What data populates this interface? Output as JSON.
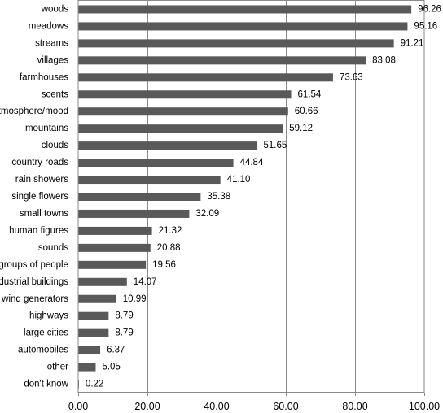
{
  "chart_data": {
    "type": "bar",
    "orientation": "horizontal",
    "categories": [
      "woods",
      "meadows",
      "streams",
      "villages",
      "farmhouses",
      "scents",
      "atmosphere/mood",
      "mountains",
      "clouds",
      "country roads",
      "rain showers",
      "single flowers",
      "small towns",
      "human figures",
      "sounds",
      "groups of people",
      "industrial buildings",
      "wind generators",
      "highways",
      "large cities",
      "automobiles",
      "other",
      "don't know"
    ],
    "values": [
      96.26,
      95.16,
      91.21,
      83.08,
      73.63,
      61.54,
      60.66,
      59.12,
      51.65,
      44.84,
      41.1,
      35.38,
      32.09,
      21.32,
      20.88,
      19.56,
      14.07,
      10.99,
      8.79,
      8.79,
      6.37,
      5.05,
      0.22
    ],
    "value_labels": [
      "96.26",
      "95.16",
      "91.21",
      "83.08",
      "73.63",
      "61.54",
      "60.66",
      "59.12",
      "51.65",
      "44.84",
      "41.10",
      "35.38",
      "32.09",
      "21.32",
      "20.88",
      "19.56",
      "14.07",
      "10.99",
      "8.79",
      "8.79",
      "6.37",
      "5.05",
      "0.22"
    ],
    "x_ticks": [
      0,
      20,
      40,
      60,
      80,
      100
    ],
    "x_tick_labels": [
      "0.00",
      "20.00",
      "40.00",
      "60.00",
      "80.00",
      "100.00"
    ],
    "xlim": [
      0,
      100
    ],
    "grid": true,
    "bar_color": "#595959",
    "title": "",
    "xlabel": "",
    "ylabel": ""
  }
}
